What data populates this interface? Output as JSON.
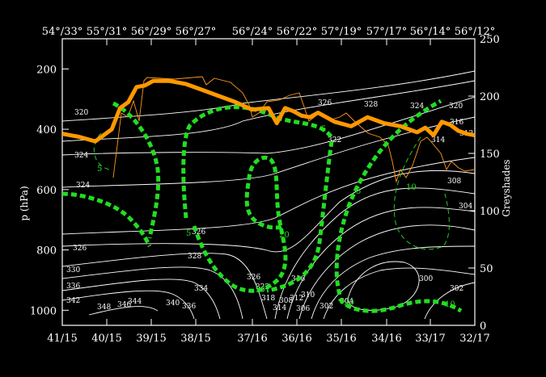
{
  "chart_data": {
    "type": "line",
    "ylabel_left": "p (hPa)",
    "ylabel_right": "Greyshades",
    "bottom_ticks": [
      "41/15",
      "40/15",
      "39/15",
      "38/15",
      "37/16",
      "36/16",
      "35/16",
      "34/16",
      "33/17",
      "32/17"
    ],
    "top_ticks": [
      "54°/33°",
      "55°/31°",
      "56°/29°",
      "56°/27°",
      "56°/24°",
      "56°/22°",
      "57°/19°",
      "57°/17°",
      "56°/14°",
      "56°/12°"
    ],
    "ylim_left": [
      1050,
      100
    ],
    "left_ticks": [
      200,
      400,
      600,
      800,
      1000
    ],
    "ylim_right": [
      0,
      250
    ],
    "right_ticks": [
      0,
      50,
      100,
      150,
      200,
      250
    ],
    "orange_thick_line": {
      "x": [
        0,
        4,
        8,
        12,
        14,
        16,
        18,
        20,
        22,
        26,
        30,
        34,
        38,
        42,
        46,
        50,
        52,
        54,
        56,
        58,
        60,
        62,
        66,
        70,
        74,
        78,
        82,
        86,
        88,
        90,
        92,
        94,
        96,
        98,
        100
      ],
      "p": [
        415,
        425,
        440,
        400,
        330,
        310,
        260,
        255,
        240,
        240,
        250,
        270,
        290,
        310,
        335,
        330,
        380,
        330,
        340,
        355,
        360,
        345,
        375,
        390,
        360,
        380,
        390,
        410,
        395,
        420,
        375,
        385,
        405,
        415,
        420
      ]
    },
    "isentropes": {
      "labels": [
        "320",
        "324",
        "324",
        "326",
        "326",
        "328",
        "330",
        "336",
        "342",
        "348",
        "346",
        "344",
        "340",
        "336",
        "334",
        "326",
        "322",
        "318",
        "316",
        "314",
        "312",
        "310",
        "308",
        "306",
        "304",
        "302",
        "300",
        "322",
        "326",
        "328",
        "324",
        "320",
        "316",
        "314",
        "312",
        "308",
        "304",
        "302"
      ]
    },
    "green_dashed_labels": [
      "5",
      "5",
      "5",
      "20",
      "10",
      "5",
      "10",
      "20",
      "10"
    ]
  }
}
